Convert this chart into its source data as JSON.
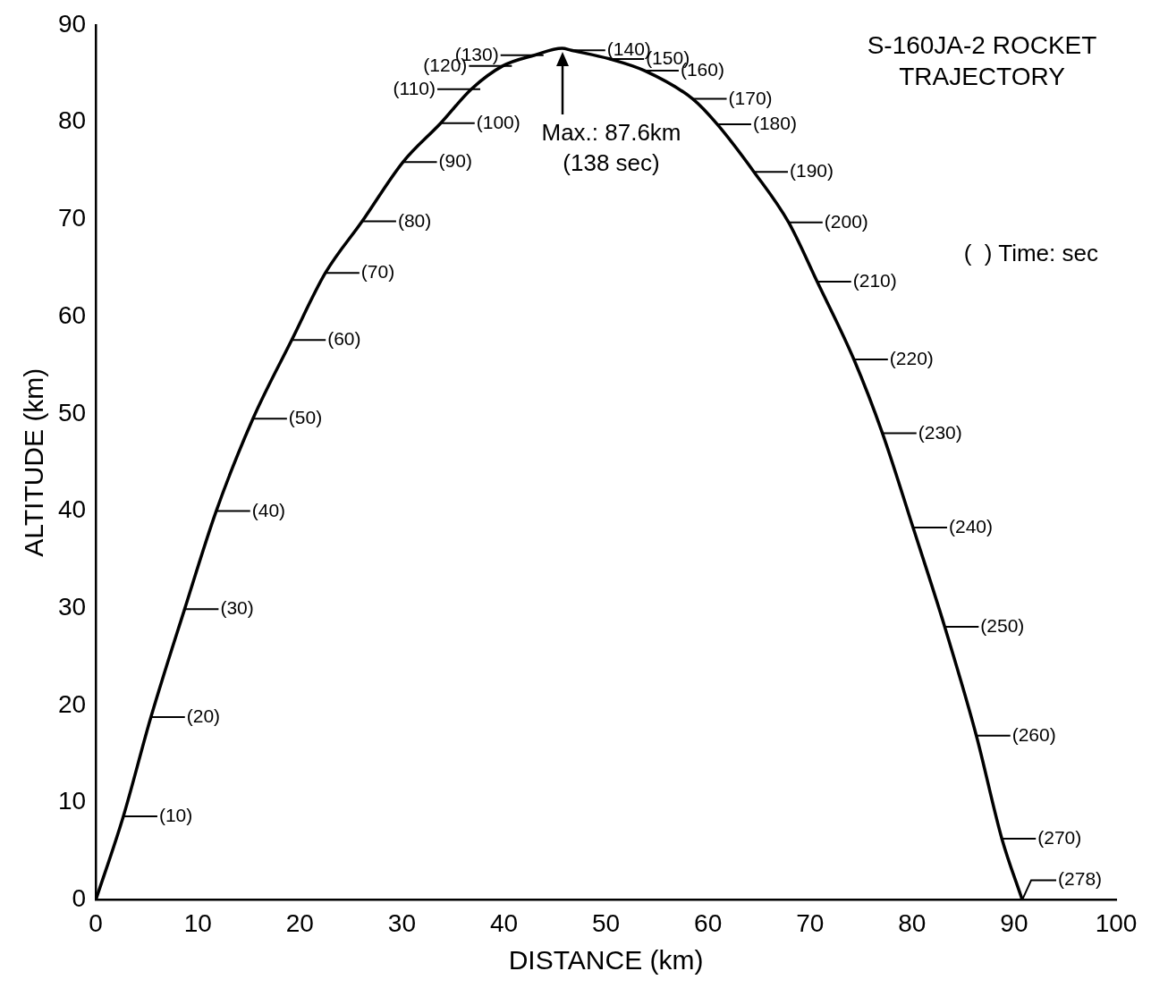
{
  "chart_data": {
    "type": "line",
    "title": "S-160JA-2 ROCKET TRAJECTORY",
    "xlabel": "DISTANCE (km)",
    "ylabel": "ALTITUDE (km)",
    "x": [
      0,
      2.7,
      5.4,
      8.7,
      11.8,
      15.4,
      19.2,
      22.5,
      26.1,
      30.1,
      33.8,
      36.8,
      39.9,
      43.0,
      45.7,
      46.6,
      50.4,
      53.8,
      58.5,
      60.9,
      64.5,
      67.9,
      70.7,
      74.3,
      77.1,
      80.1,
      83.2,
      86.3,
      88.8,
      90.8
    ],
    "series": [
      {
        "color": "#000000",
        "values": [
          0,
          8.6,
          18.8,
          29.9,
          40.0,
          49.5,
          57.6,
          64.5,
          69.8,
          75.9,
          79.9,
          83.4,
          85.8,
          86.9,
          87.6,
          87.4,
          86.5,
          85.3,
          82.4,
          79.8,
          74.9,
          69.7,
          63.6,
          55.6,
          48.0,
          38.3,
          28.1,
          16.9,
          6.3,
          0
        ]
      }
    ],
    "xlim": [
      0,
      100
    ],
    "xticks": [
      0,
      10,
      20,
      30,
      40,
      50,
      60,
      70,
      80,
      90,
      100
    ],
    "ylim": [
      0,
      90
    ],
    "yticks": [
      0,
      10,
      20,
      30,
      40,
      50,
      60,
      70,
      80,
      90
    ],
    "grid": false,
    "legend": false,
    "marker": "none",
    "line_style": "solid",
    "annotations": [
      "Max.: 87.6km (138 sec)",
      {
        "text": "(10)",
        "x": 2.7,
        "y": 8.6
      },
      {
        "text": "(20)",
        "x": 5.4,
        "y": 18.8
      },
      {
        "text": "(30)",
        "x": 8.7,
        "y": 29.9
      },
      {
        "text": "(40)",
        "x": 11.8,
        "y": 40.0
      },
      {
        "text": "(50)",
        "x": 15.4,
        "y": 49.5
      },
      {
        "text": "(60)",
        "x": 19.2,
        "y": 57.6
      },
      {
        "text": "(70)",
        "x": 22.5,
        "y": 64.5
      },
      {
        "text": "(80)",
        "x": 26.1,
        "y": 69.8
      },
      {
        "text": "(90)",
        "x": 30.1,
        "y": 75.9
      },
      {
        "text": "(100)",
        "x": 33.8,
        "y": 79.9
      },
      {
        "text": "(110)",
        "x": 36.8,
        "y": 83.4
      },
      {
        "text": "(120)",
        "x": 39.9,
        "y": 85.8
      },
      {
        "text": "(130)",
        "x": 43.0,
        "y": 86.9
      },
      {
        "text": "(140)",
        "x": 46.6,
        "y": 87.4
      },
      {
        "text": "(150)",
        "x": 50.4,
        "y": 86.5
      },
      {
        "text": "(160)",
        "x": 53.8,
        "y": 85.3
      },
      {
        "text": "(170)",
        "x": 58.5,
        "y": 82.4
      },
      {
        "text": "(180)",
        "x": 60.9,
        "y": 79.8
      },
      {
        "text": "(190)",
        "x": 64.5,
        "y": 74.9
      },
      {
        "text": "(200)",
        "x": 67.9,
        "y": 69.7
      },
      {
        "text": "(210)",
        "x": 70.7,
        "y": 63.6
      },
      {
        "text": "(220)",
        "x": 74.3,
        "y": 55.6
      },
      {
        "text": "(230)",
        "x": 77.1,
        "y": 48.0
      },
      {
        "text": "(240)",
        "x": 80.1,
        "y": 38.3
      },
      {
        "text": "(250)",
        "x": 83.2,
        "y": 28.1
      },
      {
        "text": "(260)",
        "x": 86.3,
        "y": 16.9
      },
      {
        "text": "(270)",
        "x": 88.8,
        "y": 6.3
      },
      {
        "text": "(278)",
        "x": 90.8,
        "y": 0
      },
      "(  ) Time: sec"
    ]
  }
}
